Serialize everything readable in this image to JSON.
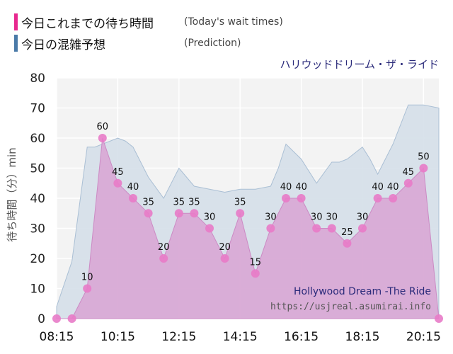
{
  "legend": {
    "today_label": "今日これまでの待ち時間",
    "today_sub": "(Today's wait times)",
    "prediction_label": "今日の混雑予想",
    "prediction_sub": "(Prediction)"
  },
  "colors": {
    "today": "#e8288f",
    "prediction": "#4a7aa8",
    "today_fill": "#d9a3d3",
    "prediction_fill": "#d2dde8",
    "point": "#e87bc8",
    "attraction_text": "#2a2a7a"
  },
  "attraction_name": "ハリウッドドリーム・ザ・ライド",
  "watermark": {
    "name": "Hollywood Dream -The Ride",
    "url": "https://usjreal.asumirai.info"
  },
  "chart_data": {
    "type": "area",
    "ylabel": "待ち時間（分）min",
    "ylim": [
      0,
      80
    ],
    "yticks": [
      0,
      10,
      20,
      30,
      40,
      50,
      60,
      70,
      80
    ],
    "xlim": [
      "08:15",
      "20:45"
    ],
    "xticks": [
      "08:15",
      "10:15",
      "12:15",
      "14:15",
      "16:15",
      "18:15",
      "20:15"
    ],
    "grid": true,
    "series": [
      {
        "name": "今日これまでの待ち時間",
        "x": [
          "08:15",
          "08:45",
          "09:15",
          "09:45",
          "10:15",
          "10:45",
          "11:15",
          "11:45",
          "12:15",
          "12:45",
          "13:15",
          "13:45",
          "14:15",
          "14:45",
          "15:15",
          "15:45",
          "16:15",
          "16:45",
          "17:15",
          "17:45",
          "18:15",
          "18:45",
          "19:15",
          "19:45",
          "20:15",
          "20:45"
        ],
        "values": [
          0,
          0,
          10,
          60,
          45,
          40,
          35,
          20,
          35,
          35,
          30,
          20,
          35,
          15,
          30,
          40,
          40,
          30,
          30,
          25,
          30,
          40,
          40,
          45,
          50,
          0
        ],
        "data_labels": [
          "",
          "",
          "10",
          "60",
          "45",
          "40",
          "35",
          "20",
          "35",
          "35",
          "30",
          "20",
          "35",
          "15",
          "30",
          "40",
          "40",
          "30",
          "30",
          "25",
          "30",
          "40",
          "40",
          "45",
          "50",
          ""
        ]
      },
      {
        "name": "今日の混雑予想",
        "x": [
          "08:15",
          "08:45",
          "09:15",
          "09:30",
          "09:45",
          "10:15",
          "10:30",
          "10:45",
          "11:15",
          "11:45",
          "12:15",
          "12:30",
          "12:45",
          "13:15",
          "13:45",
          "14:15",
          "14:45",
          "15:15",
          "15:30",
          "15:45",
          "16:15",
          "16:45",
          "17:15",
          "17:30",
          "17:45",
          "18:15",
          "18:30",
          "18:45",
          "19:15",
          "19:45",
          "20:15",
          "20:45"
        ],
        "values": [
          4,
          19,
          57,
          57,
          58,
          60,
          59,
          57,
          47,
          40,
          50,
          47,
          44,
          43,
          42,
          43,
          43,
          44,
          50,
          58,
          53,
          45,
          52,
          52,
          53,
          57,
          53,
          48,
          58,
          71,
          71,
          70
        ]
      }
    ]
  }
}
